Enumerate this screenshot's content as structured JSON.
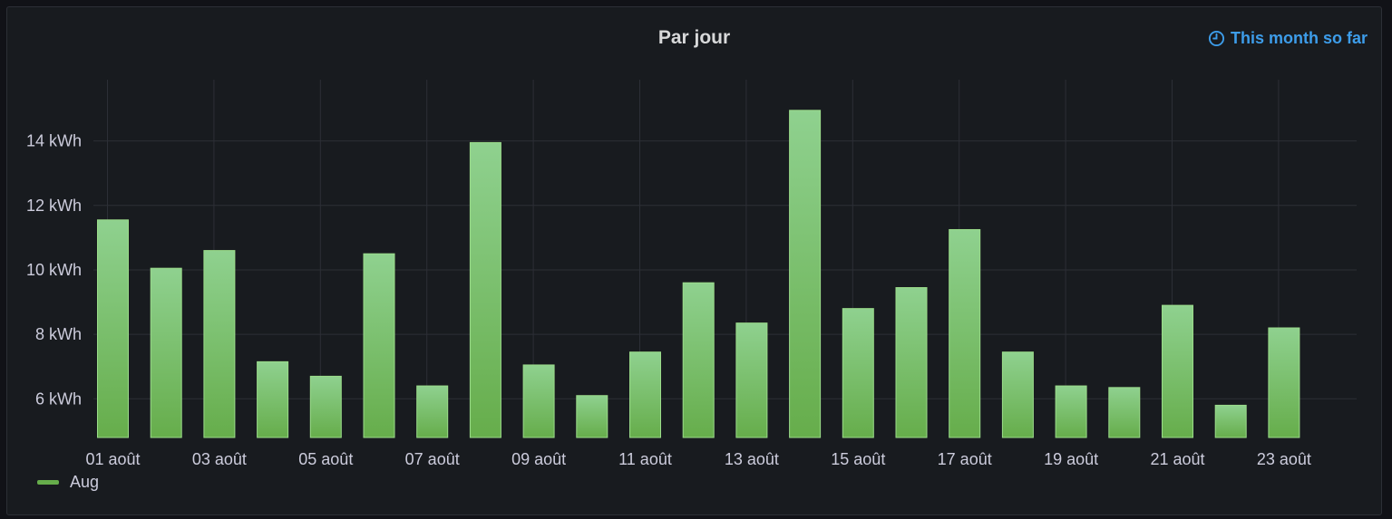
{
  "panel": {
    "title": "Par jour",
    "time_info": "This month so far"
  },
  "colors": {
    "bar_top": "#8fd18f",
    "bar_bottom": "#66ad4b",
    "bar_stroke": "#9bdc8a",
    "grid": "#2c2f36",
    "tick_text": "#ccccdc",
    "time_info": "#3d9dea"
  },
  "chart_data": {
    "type": "bar",
    "x": [
      "01 août",
      "02 août",
      "03 août",
      "04 août",
      "05 août",
      "06 août",
      "07 août",
      "08 août",
      "09 août",
      "10 août",
      "11 août",
      "12 août",
      "13 août",
      "14 août",
      "15 août",
      "16 août",
      "17 août",
      "18 août",
      "19 août",
      "20 août",
      "21 août",
      "22 août",
      "23 août"
    ],
    "x_tick_labels": [
      "01 août",
      "03 août",
      "05 août",
      "07 août",
      "09 août",
      "11 août",
      "13 août",
      "15 août",
      "17 août",
      "19 août",
      "21 août",
      "23 août"
    ],
    "series": [
      {
        "name": "Aug",
        "values": [
          11.55,
          10.05,
          10.6,
          7.15,
          6.7,
          10.5,
          6.4,
          13.95,
          7.05,
          6.1,
          7.45,
          9.6,
          8.35,
          14.95,
          8.8,
          9.45,
          11.25,
          7.45,
          6.4,
          6.35,
          8.9,
          5.8,
          8.2
        ]
      }
    ],
    "y_ticks": [
      6,
      8,
      10,
      12,
      14
    ],
    "y_unit": "kWh",
    "ylim": [
      4.8,
      15.9
    ],
    "grid": true,
    "legend_position": "bottom-left"
  }
}
